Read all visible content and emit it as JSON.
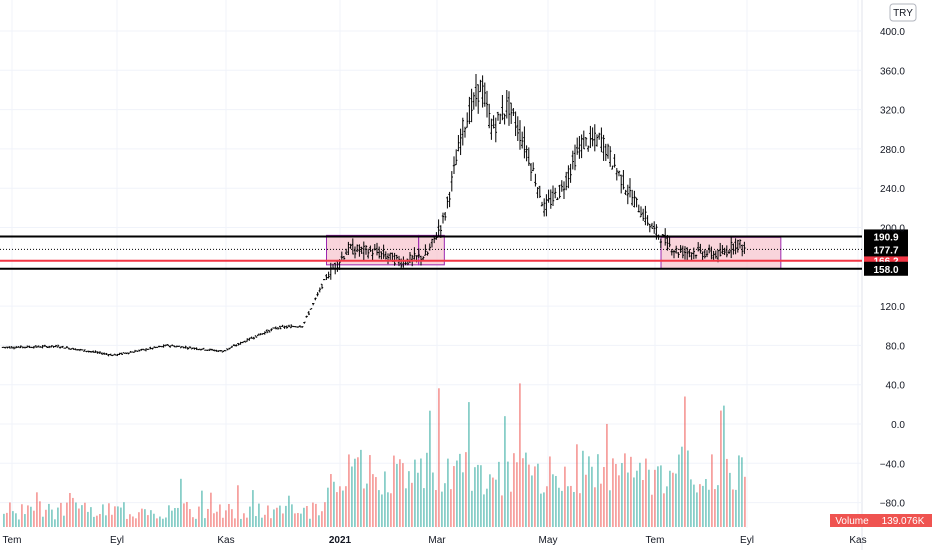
{
  "chart_data": {
    "type": "ohlc",
    "currency": "TRY",
    "y_axis": {
      "ticks": [
        400,
        360,
        320,
        280,
        240,
        200,
        120,
        80,
        40,
        0,
        -40,
        -80
      ],
      "tick_labels": [
        "400.0",
        "360.0",
        "320.0",
        "280.0",
        "240.0",
        "200.0",
        "120.0",
        "80.0",
        "40.0",
        "0.0",
        "−40.0",
        "−80.0"
      ],
      "range": [
        -100,
        420
      ]
    },
    "x_axis": {
      "labels": [
        "Tem",
        "Eyl",
        "Kas",
        "2021",
        "Mar",
        "May",
        "Tem",
        "Eyl",
        "Kas"
      ],
      "bold_label": "2021"
    },
    "price_series": [
      {
        "date": "2020-07",
        "price": 78
      },
      {
        "date": "2020-08",
        "price": 79
      },
      {
        "date": "2020-09",
        "price": 70
      },
      {
        "date": "2020-10",
        "price": 80
      },
      {
        "date": "2020-11",
        "price": 74
      },
      {
        "date": "2020-11-20",
        "price": 90
      },
      {
        "date": "2020-12-01",
        "price": 98
      },
      {
        "date": "2020-12-15",
        "price": 100
      },
      {
        "date": "2020-12-28",
        "price": 150
      },
      {
        "date": "2021-01-10",
        "price": 178
      },
      {
        "date": "2021-01-25",
        "price": 175
      },
      {
        "date": "2021-02-10",
        "price": 165
      },
      {
        "date": "2021-02-25",
        "price": 172
      },
      {
        "date": "2021-03-05",
        "price": 210
      },
      {
        "date": "2021-03-15",
        "price": 300
      },
      {
        "date": "2021-03-25",
        "price": 345
      },
      {
        "date": "2021-04-01",
        "price": 300
      },
      {
        "date": "2021-04-10",
        "price": 325
      },
      {
        "date": "2021-04-20",
        "price": 280
      },
      {
        "date": "2021-04-30",
        "price": 220
      },
      {
        "date": "2021-05-10",
        "price": 240
      },
      {
        "date": "2021-05-20",
        "price": 285
      },
      {
        "date": "2021-06-01",
        "price": 290
      },
      {
        "date": "2021-06-15",
        "price": 240
      },
      {
        "date": "2021-06-30",
        "price": 198
      },
      {
        "date": "2021-07-15",
        "price": 176
      },
      {
        "date": "2021-07-30",
        "price": 175
      },
      {
        "date": "2021-08-15",
        "price": 172
      },
      {
        "date": "2021-08-25",
        "price": 185
      },
      {
        "date": "2021-08-30",
        "price": 178
      }
    ],
    "horizontal_lines": [
      {
        "price": 190.9,
        "label": "190.9",
        "color": "#000000"
      },
      {
        "price": 166.2,
        "label": "166.2",
        "color": "#f23645"
      },
      {
        "price": 158.0,
        "label": "158.0",
        "color": "#000000"
      }
    ],
    "last_price": {
      "price": 177.7,
      "label": "177.7",
      "color": "#000000"
    },
    "rectangles": [
      {
        "start": "2020-12-28",
        "end": "2021-02-20",
        "low": 162,
        "high": 192
      },
      {
        "start": "2021-02-20",
        "end": "2021-03-05",
        "low": 162,
        "high": 192
      },
      {
        "start": "2021-07-05",
        "end": "2021-09-20",
        "low": 158,
        "high": 190
      }
    ],
    "volume": {
      "label": "Volume",
      "value_label": "139.076K",
      "colors": {
        "up": "#26a69a",
        "down": "#ef5350"
      }
    },
    "colors": {
      "price": "#000000",
      "rect_fill": "#f7c6cf",
      "rect_stroke": "#9c27b0",
      "red_line": "#f23645"
    }
  }
}
